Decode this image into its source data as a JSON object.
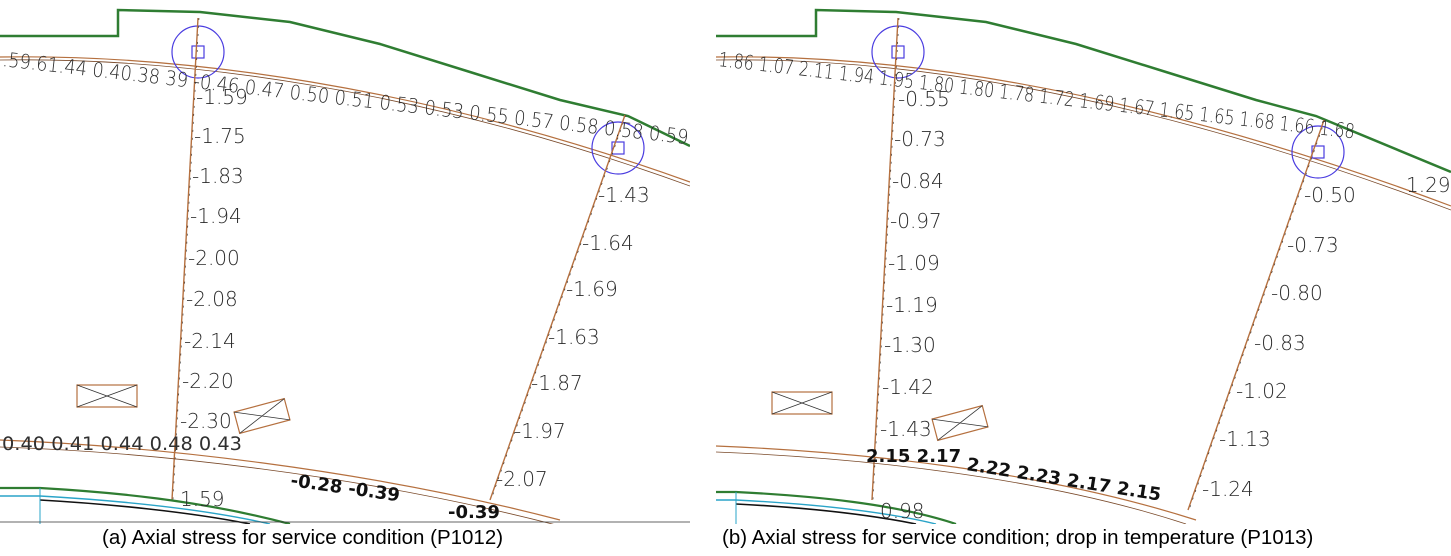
{
  "panel_a": {
    "caption": "(a) Axial stress for service condition (P1012)",
    "top_text": ".59.61.44 0.40.38 39 -0.46 0.47 0.50 0.51 0.53 0.53 0.55 0.57 0.58 0.58 0.59",
    "left_column": [
      "-1.59",
      "-1.75",
      "-1.83",
      "-1.94",
      "-2.00",
      "-2.08",
      "-2.14",
      "-2.20",
      "-2.30"
    ],
    "right_column": [
      "-1.43",
      "-1.64",
      "-1.69",
      "-1.63",
      "-1.87",
      "-1.97",
      "-2.07"
    ],
    "bottom_left_label": "1.59",
    "bottom_clutter_1": "0.40 0.41 0.44 0.48 0.43",
    "bottom_clutter_2": "-0.28 -0.39",
    "bottom_clutter_3": "-0.39"
  },
  "panel_b": {
    "caption": "(b) Axial stress for service condition; drop in temperature (P1013)",
    "top_text": "1.86 1.07 2.11 1.94 1.95 1.80 1.80 1.78 1.72 1.69 1.67 1.65 1.65 1.68 1.66 1.68",
    "top_right_tail": "1.29",
    "left_column": [
      "-0.55",
      "-0.73",
      "-0.84",
      "-0.97",
      "-1.09",
      "-1.19",
      "-1.30",
      "-1.42",
      "-1.43"
    ],
    "right_column": [
      "-0.50",
      "-0.73",
      "-0.80",
      "-0.83",
      "-1.02",
      "-1.13",
      "-1.24"
    ],
    "bottom_left_label": "0.98",
    "bottom_clutter_1": "2.15 2.17",
    "bottom_clutter_2": "2.22 2.23 2.17 2.15"
  },
  "colors": {
    "slab_outline": "#2f7d32",
    "stress_line": "#b5703f",
    "support_marker": "#4a3ce0",
    "label_text": "#2a2a2a",
    "bottom_structure": "#2aa4c8"
  }
}
